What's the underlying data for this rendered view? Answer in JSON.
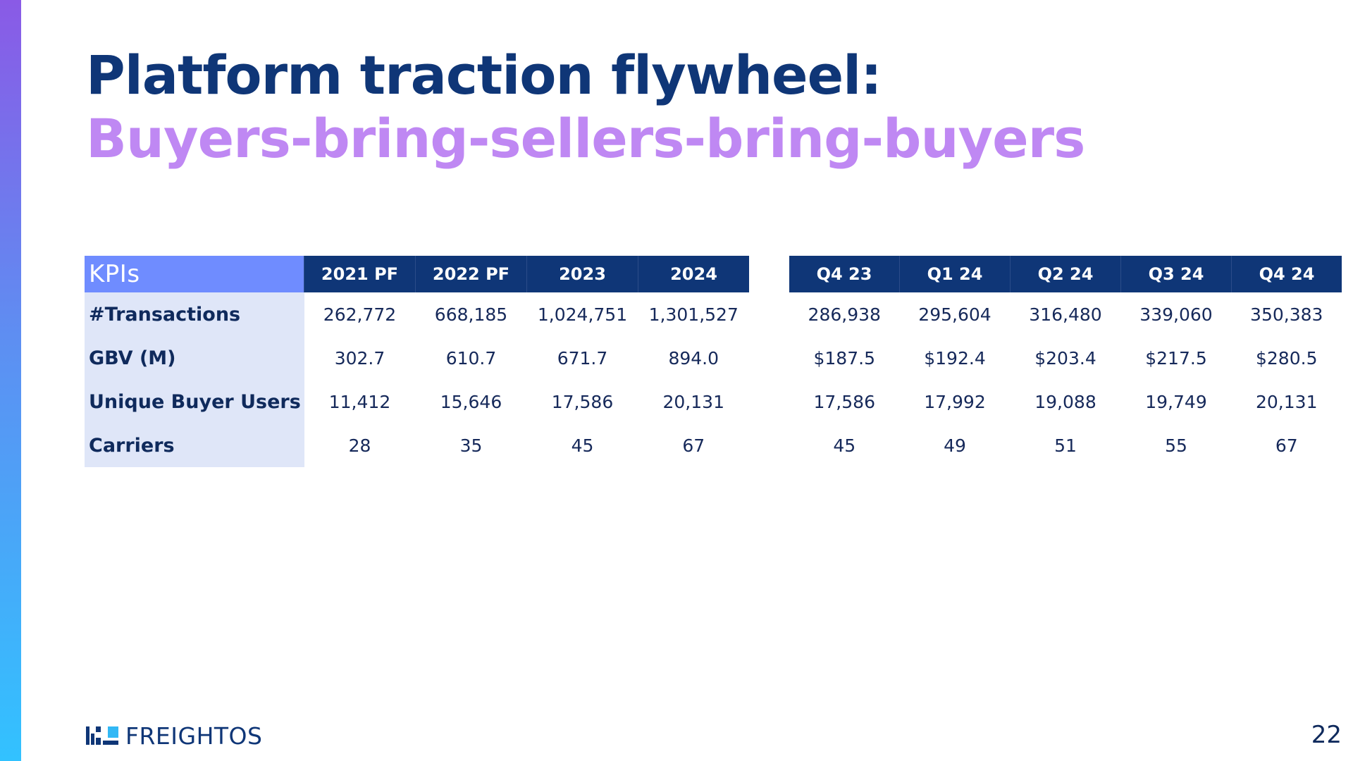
{
  "title": {
    "line1": "Platform traction flywheel:",
    "line2": "Buyers-bring-sellers-bring-buyers"
  },
  "colors": {
    "title_primary": "#0f3677",
    "title_accent": "#bf88f3",
    "header_bg": "#0f3677",
    "kpi_header_bg": "#6f8cff",
    "row_label_bg": "#dfe6f8"
  },
  "annual_table": {
    "kpi_header": "KPIs",
    "columns": [
      "2021 PF",
      "2022 PF",
      "2023",
      "2024"
    ],
    "rows": [
      {
        "label": "#Transactions",
        "values": [
          "262,772",
          "668,185",
          "1,024,751",
          "1,301,527"
        ]
      },
      {
        "label": "GBV (M)",
        "values": [
          "302.7",
          "610.7",
          "671.7",
          "894.0"
        ]
      },
      {
        "label": "Unique Buyer Users",
        "values": [
          "11,412",
          "15,646",
          "17,586",
          "20,131"
        ]
      },
      {
        "label": "Carriers",
        "values": [
          "28",
          "35",
          "45",
          "67"
        ]
      }
    ]
  },
  "quarterly_table": {
    "columns": [
      "Q4 23",
      "Q1 24",
      "Q2 24",
      "Q3 24",
      "Q4 24"
    ],
    "rows": [
      {
        "values": [
          "286,938",
          "295,604",
          "316,480",
          "339,060",
          "350,383"
        ]
      },
      {
        "values": [
          "$187.5",
          "$192.4",
          "$203.4",
          "$217.5",
          "$280.5"
        ]
      },
      {
        "values": [
          "17,586",
          "17,992",
          "19,088",
          "19,749",
          "20,131"
        ]
      },
      {
        "values": [
          "45",
          "49",
          "51",
          "55",
          "67"
        ]
      }
    ]
  },
  "footer": {
    "logo_text": "FREIGHTOS",
    "logo_icon": "freightos-logo-icon",
    "page_number": "22"
  }
}
